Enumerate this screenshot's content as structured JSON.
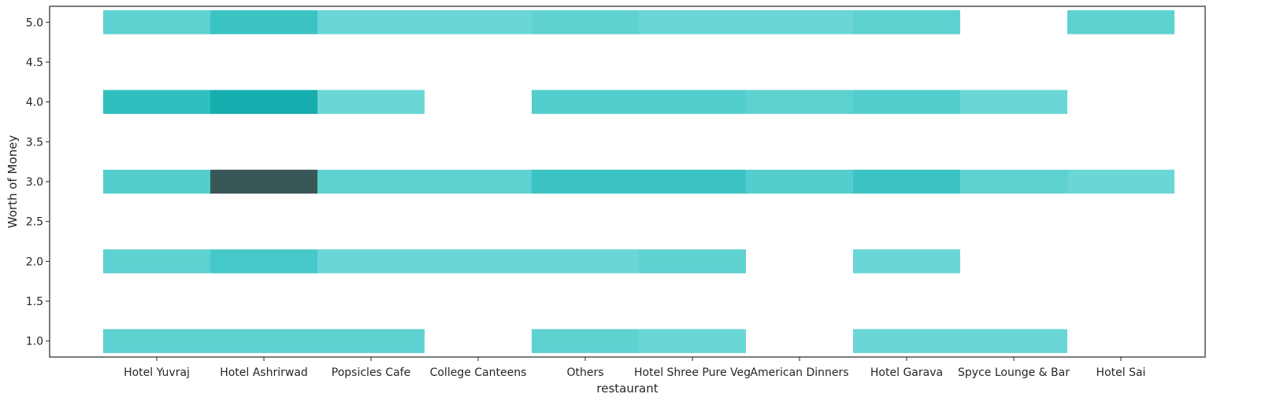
{
  "chart_data": {
    "type": "heatmap",
    "title": "",
    "xlabel": "restaurant",
    "ylabel": "Worth of Money",
    "categories": [
      "Hotel Yuvraj",
      "Hotel Ashrirwad",
      "Popsicles Cafe",
      "College Canteens",
      "Others",
      "Hotel Shree Pure Veg",
      "American Dinners",
      "Hotel Garava",
      "Spyce Lounge & Bar",
      "Hotel Sai"
    ],
    "y_ticks": [
      "1.0",
      "1.5",
      "2.0",
      "2.5",
      "3.0",
      "3.5",
      "4.0",
      "4.5",
      "5.0"
    ],
    "y_tick_values": [
      1.0,
      1.5,
      2.0,
      2.5,
      3.0,
      3.5,
      4.0,
      4.5,
      5.0
    ],
    "ylim": [
      0.8,
      5.2
    ],
    "bin_levels": [
      1,
      2,
      3,
      4,
      5
    ],
    "counts": [
      [
        2,
        2,
        3,
        6,
        2
      ],
      [
        2,
        4,
        16,
        9,
        5
      ],
      [
        2,
        1,
        2,
        1,
        1
      ],
      [
        0,
        1,
        2,
        0,
        1
      ],
      [
        2,
        1,
        5,
        3,
        2
      ],
      [
        1,
        2,
        5,
        3,
        1
      ],
      [
        0,
        0,
        3,
        2,
        1
      ],
      [
        1,
        1,
        5,
        3,
        2
      ],
      [
        1,
        0,
        2,
        1,
        0
      ],
      [
        0,
        0,
        1,
        0,
        2
      ]
    ],
    "color_light": "#6ad6d6",
    "color_mid": "#12b3b3",
    "color_dark": "#3a5757",
    "grid": false
  }
}
